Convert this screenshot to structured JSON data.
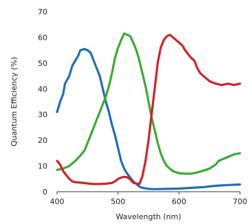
{
  "chart_data": {
    "type": "line",
    "title": "",
    "xlabel": "Wavelength (nm)",
    "ylabel": "Quantum Efficiency (%)",
    "xlim": [
      400,
      700
    ],
    "ylim": [
      0,
      70
    ],
    "x_ticks": [
      400,
      500,
      600,
      700
    ],
    "y_ticks": [
      0,
      10,
      20,
      30,
      40,
      50,
      60,
      70
    ],
    "grid": false,
    "legend": "none",
    "series": [
      {
        "color": "#1f6fb4",
        "points": [
          [
            400,
            31
          ],
          [
            405,
            35
          ],
          [
            410,
            38
          ],
          [
            413,
            42
          ],
          [
            420,
            45
          ],
          [
            425,
            49
          ],
          [
            430,
            51
          ],
          [
            435,
            53
          ],
          [
            438,
            55
          ],
          [
            445,
            55.5
          ],
          [
            450,
            55
          ],
          [
            455,
            54
          ],
          [
            460,
            51
          ],
          [
            465,
            48
          ],
          [
            470,
            45
          ],
          [
            475,
            40
          ],
          [
            480,
            35
          ],
          [
            485,
            31
          ],
          [
            490,
            26
          ],
          [
            495,
            22
          ],
          [
            500,
            17
          ],
          [
            505,
            12
          ],
          [
            510,
            9
          ],
          [
            515,
            7
          ],
          [
            520,
            5.5
          ],
          [
            525,
            4
          ],
          [
            530,
            3
          ],
          [
            535,
            2
          ],
          [
            540,
            1.5
          ],
          [
            545,
            1.3
          ],
          [
            550,
            1.1
          ],
          [
            560,
            1.0
          ],
          [
            580,
            1.1
          ],
          [
            600,
            1.2
          ],
          [
            620,
            1.5
          ],
          [
            640,
            1.8
          ],
          [
            660,
            2.3
          ],
          [
            680,
            2.6
          ],
          [
            700,
            2.8
          ]
        ]
      },
      {
        "color": "#3aaa35",
        "points": [
          [
            400,
            8.5
          ],
          [
            410,
            9
          ],
          [
            420,
            10
          ],
          [
            430,
            12
          ],
          [
            438,
            14
          ],
          [
            445,
            16
          ],
          [
            450,
            19
          ],
          [
            455,
            22
          ],
          [
            460,
            25
          ],
          [
            465,
            28
          ],
          [
            470,
            31
          ],
          [
            475,
            34
          ],
          [
            480,
            37
          ],
          [
            485,
            41
          ],
          [
            490,
            46
          ],
          [
            495,
            52
          ],
          [
            500,
            56
          ],
          [
            505,
            59
          ],
          [
            510,
            61.5
          ],
          [
            515,
            61
          ],
          [
            520,
            60.5
          ],
          [
            525,
            58
          ],
          [
            530,
            55
          ],
          [
            535,
            51
          ],
          [
            540,
            46
          ],
          [
            545,
            41
          ],
          [
            550,
            35
          ],
          [
            555,
            29
          ],
          [
            560,
            24
          ],
          [
            565,
            19
          ],
          [
            570,
            15
          ],
          [
            575,
            12
          ],
          [
            580,
            10
          ],
          [
            585,
            9
          ],
          [
            590,
            8
          ],
          [
            600,
            7.2
          ],
          [
            610,
            7.0
          ],
          [
            620,
            7.0
          ],
          [
            630,
            7.5
          ],
          [
            640,
            8.2
          ],
          [
            650,
            9.0
          ],
          [
            660,
            10.5
          ],
          [
            665,
            12
          ],
          [
            670,
            12.5
          ],
          [
            680,
            13.5
          ],
          [
            690,
            14.5
          ],
          [
            700,
            15
          ]
        ]
      },
      {
        "color": "#d62027",
        "points": [
          [
            400,
            12
          ],
          [
            405,
            10.5
          ],
          [
            410,
            8
          ],
          [
            415,
            6.5
          ],
          [
            420,
            5
          ],
          [
            425,
            4
          ],
          [
            430,
            3.7
          ],
          [
            440,
            3.5
          ],
          [
            450,
            3.2
          ],
          [
            460,
            3.0
          ],
          [
            470,
            3.0
          ],
          [
            480,
            3.1
          ],
          [
            490,
            3.4
          ],
          [
            495,
            4
          ],
          [
            500,
            5
          ],
          [
            505,
            5.5
          ],
          [
            510,
            5.8
          ],
          [
            515,
            5.6
          ],
          [
            520,
            4.8
          ],
          [
            525,
            3.5
          ],
          [
            530,
            3.2
          ],
          [
            535,
            3.0
          ],
          [
            540,
            6
          ],
          [
            545,
            12
          ],
          [
            550,
            20
          ],
          [
            555,
            30
          ],
          [
            560,
            40
          ],
          [
            565,
            50
          ],
          [
            570,
            56
          ],
          [
            575,
            59
          ],
          [
            580,
            60.5
          ],
          [
            585,
            61
          ],
          [
            590,
            60
          ],
          [
            595,
            59
          ],
          [
            600,
            58
          ],
          [
            605,
            57
          ],
          [
            610,
            55
          ],
          [
            615,
            53.5
          ],
          [
            620,
            52
          ],
          [
            625,
            51
          ],
          [
            630,
            48
          ],
          [
            635,
            46
          ],
          [
            640,
            45
          ],
          [
            645,
            44
          ],
          [
            650,
            43
          ],
          [
            660,
            42
          ],
          [
            670,
            41.5
          ],
          [
            680,
            42
          ],
          [
            690,
            41.5
          ],
          [
            700,
            42
          ]
        ]
      }
    ]
  }
}
